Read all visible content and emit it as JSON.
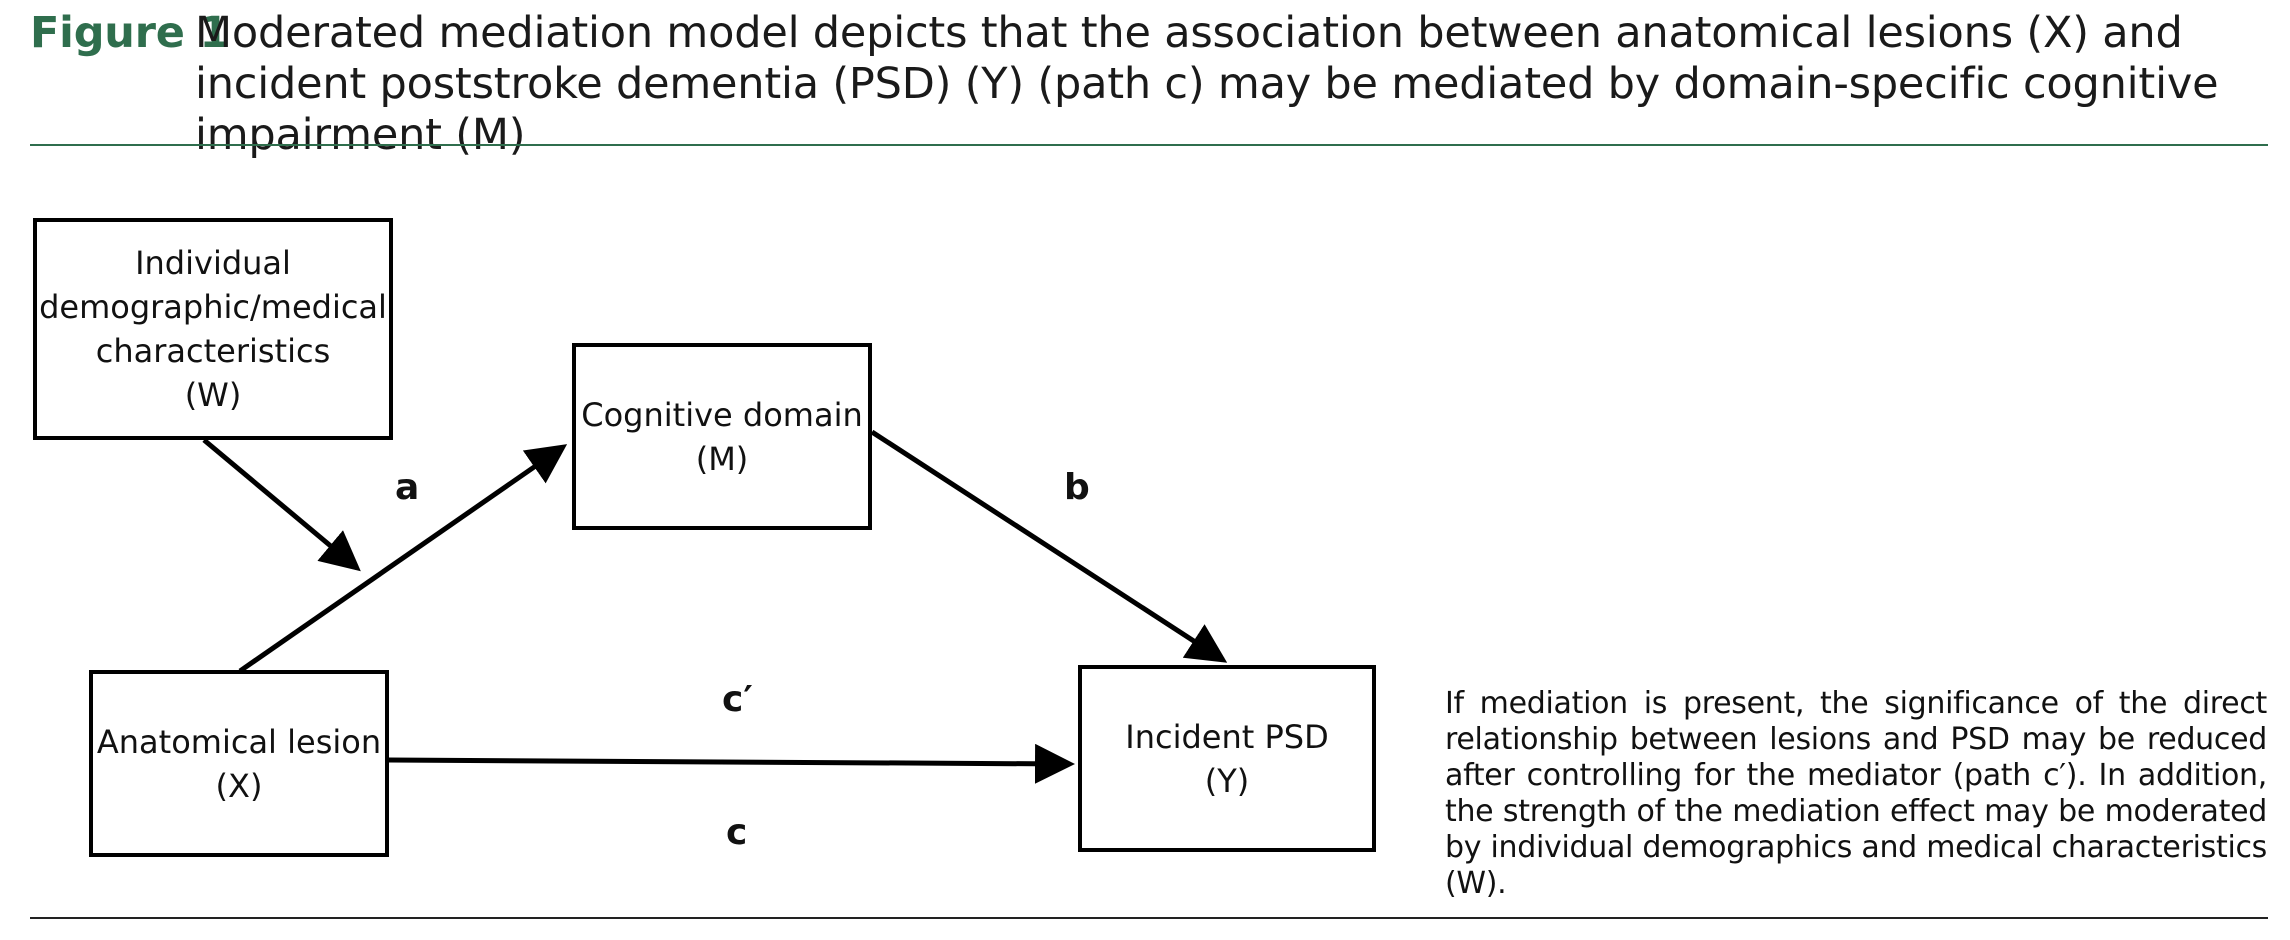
{
  "caption": {
    "figure_label": "Figure 1",
    "text": "Moderated mediation model depicts that the association between anatomical lesions (X) and incident poststroke dementia (PSD) (Y) (path c) may be mediated by domain-specific cognitive impairment (M)"
  },
  "diagram": {
    "nodes": {
      "moderator": {
        "lines": [
          "Individual",
          "demographic/medical",
          "characteristics",
          "(W)"
        ]
      },
      "mediator": {
        "lines": [
          "Cognitive domain",
          "(M)"
        ]
      },
      "predictor": {
        "lines": [
          "Anatomical lesion",
          "(X)"
        ]
      },
      "outcome": {
        "lines": [
          "Incident PSD",
          "(Y)"
        ]
      }
    },
    "path_labels": {
      "a": "a",
      "b": "b",
      "c_prime": "c′",
      "c": "c"
    },
    "edges": [
      {
        "from": "predictor",
        "to": "mediator",
        "label": "a"
      },
      {
        "from": "mediator",
        "to": "outcome",
        "label": "b"
      },
      {
        "from": "predictor",
        "to": "outcome",
        "label": "c / c′"
      },
      {
        "from": "moderator",
        "to": "path a",
        "label": ""
      }
    ]
  },
  "note": "If mediation is present, the significance of the direct relationship between lesions and PSD may be reduced after controlling for the mediator (path c′). In addition, the strength of the mediation effect may be moderated by individual demographics and medical characteristics (W)."
}
